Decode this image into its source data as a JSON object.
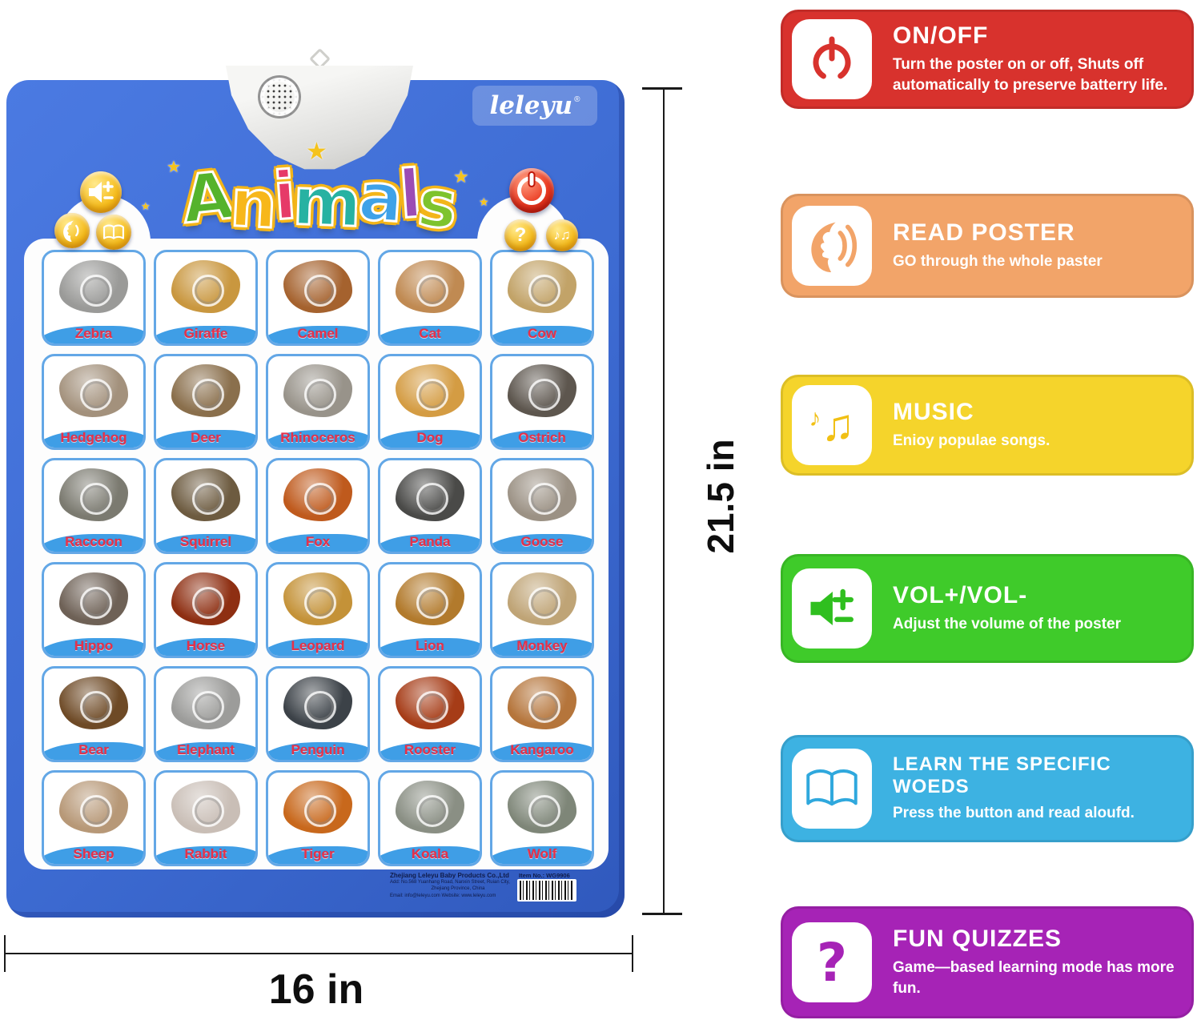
{
  "poster": {
    "brand": "leleyu",
    "brand_mark": "®",
    "title_letters": [
      {
        "ch": "A",
        "color": "#55b32c"
      },
      {
        "ch": "n",
        "color": "#f7b71b"
      },
      {
        "ch": "i",
        "color": "#e63a68"
      },
      {
        "ch": "m",
        "color": "#27b2a2"
      },
      {
        "ch": "a",
        "color": "#3fa2e8"
      },
      {
        "ch": "l",
        "color": "#9c4cb4"
      },
      {
        "ch": "s",
        "color": "#7ec32d"
      }
    ],
    "controls": {
      "quiz_glyph": "?",
      "music_glyph": "♪♫"
    },
    "animals": [
      {
        "name": "Zebra",
        "color": "#9a9a98"
      },
      {
        "name": "Giraffe",
        "color": "#c9973f"
      },
      {
        "name": "Camel",
        "color": "#a5622e"
      },
      {
        "name": "Cat",
        "color": "#c08a52"
      },
      {
        "name": "Cow",
        "color": "#c2a368"
      },
      {
        "name": "Hedgehog",
        "color": "#a3917c"
      },
      {
        "name": "Deer",
        "color": "#8a6f4c"
      },
      {
        "name": "Rhinoceros",
        "color": "#98938a"
      },
      {
        "name": "Dog",
        "color": "#d49c43"
      },
      {
        "name": "Ostrich",
        "color": "#5d564e"
      },
      {
        "name": "Raccoon",
        "color": "#7b7a70"
      },
      {
        "name": "Squirrel",
        "color": "#6d5b40"
      },
      {
        "name": "Fox",
        "color": "#bf5a1d"
      },
      {
        "name": "Panda",
        "color": "#4a4a48"
      },
      {
        "name": "Goose",
        "color": "#9b9184"
      },
      {
        "name": "Hippo",
        "color": "#6e6156"
      },
      {
        "name": "Horse",
        "color": "#8e2f12"
      },
      {
        "name": "Leopard",
        "color": "#c49238"
      },
      {
        "name": "Lion",
        "color": "#b27a2c"
      },
      {
        "name": "Monkey",
        "color": "#bfa476"
      },
      {
        "name": "Bear",
        "color": "#6e4a26"
      },
      {
        "name": "Elephant",
        "color": "#9c9c9a"
      },
      {
        "name": "Penguin",
        "color": "#3c4248"
      },
      {
        "name": "Rooster",
        "color": "#a63c17"
      },
      {
        "name": "Kangaroo",
        "color": "#b5753b"
      },
      {
        "name": "Sheep",
        "color": "#b79877"
      },
      {
        "name": "Rabbit",
        "color": "#c9beb6"
      },
      {
        "name": "Tiger",
        "color": "#c8681c"
      },
      {
        "name": "Koala",
        "color": "#8a8f84"
      },
      {
        "name": "Wolf",
        "color": "#7e8678"
      }
    ],
    "label_color": "#e5304a",
    "footer": {
      "company": "Zhejiang Leleyu Baby Products Co.,Ltd",
      "address1": "Add: No.568 Yuanhang Road, Nanxin Street, Ruian City,",
      "address2": "Zhejiang Province, China",
      "contact": "Email: info@leleyu.com      Website: www.leleyu.com",
      "item_no": "Item No.: WG9906"
    }
  },
  "dimensions": {
    "height_label": "21.5 in",
    "width_label": "16 in"
  },
  "features": {
    "items": [
      {
        "icon": "power-icon",
        "title": "ON/OFF",
        "desc": "Turn the poster on or off, Shuts off automatically to preserve batterry life.",
        "color": "#d8322d"
      },
      {
        "icon": "speaking-face-icon",
        "title": "READ POSTER",
        "desc": "GO through the whole  paster",
        "color": "#f2a469"
      },
      {
        "icon": "music-notes-icon",
        "title": "MUSIC",
        "desc": "Enioy populae songs.",
        "color": "#f5d42b",
        "glyph_main": "♫",
        "glyph_small": "♪"
      },
      {
        "icon": "volume-plus-minus-icon",
        "title": "VOL+/VOL-",
        "desc": "Adjust the volume of the poster",
        "color": "#3fcb2a"
      },
      {
        "icon": "open-book-icon",
        "title": "LEARN THE SPECIFIC WOEDS",
        "desc": "Press the button and read aloufd.",
        "color": "#3db2e2"
      },
      {
        "icon": "question-mark-icon",
        "title": "FUN QUIZZES",
        "desc": "Game—based learning mode has more fun.",
        "color": "#a623b6",
        "glyph_main": "?"
      }
    ]
  }
}
